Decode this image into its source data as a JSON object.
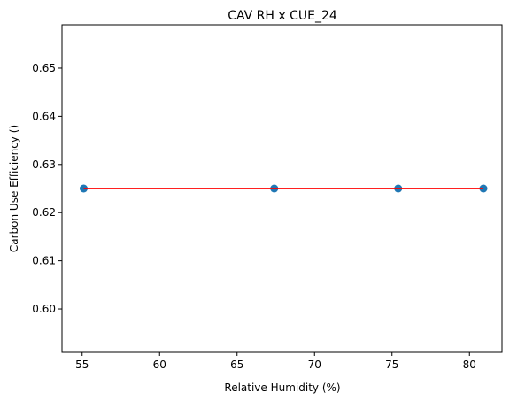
{
  "chart_data": {
    "type": "scatter",
    "title": "CAV RH x CUE_24",
    "xlabel": "Relative Humidity (%)",
    "ylabel": "Carbon Use Efficiency ()",
    "xlim": [
      53.7,
      82.1
    ],
    "ylim": [
      0.591,
      0.659
    ],
    "xticks": [
      55,
      60,
      65,
      70,
      75,
      80
    ],
    "xtick_labels": [
      "55",
      "60",
      "65",
      "70",
      "75",
      "80"
    ],
    "yticks": [
      0.6,
      0.61,
      0.62,
      0.63,
      0.64,
      0.65
    ],
    "ytick_labels": [
      "0.60",
      "0.61",
      "0.62",
      "0.63",
      "0.64",
      "0.65"
    ],
    "grid": false,
    "series": [
      {
        "kind": "scatter",
        "color": "#1f77b4",
        "points": [
          {
            "x": 55.1,
            "y": 0.625
          },
          {
            "x": 67.4,
            "y": 0.625
          },
          {
            "x": 75.4,
            "y": 0.625
          },
          {
            "x": 80.9,
            "y": 0.625
          }
        ]
      },
      {
        "kind": "line",
        "color": "#ff0000",
        "points": [
          {
            "x": 55.1,
            "y": 0.625
          },
          {
            "x": 80.9,
            "y": 0.625
          }
        ]
      }
    ]
  }
}
